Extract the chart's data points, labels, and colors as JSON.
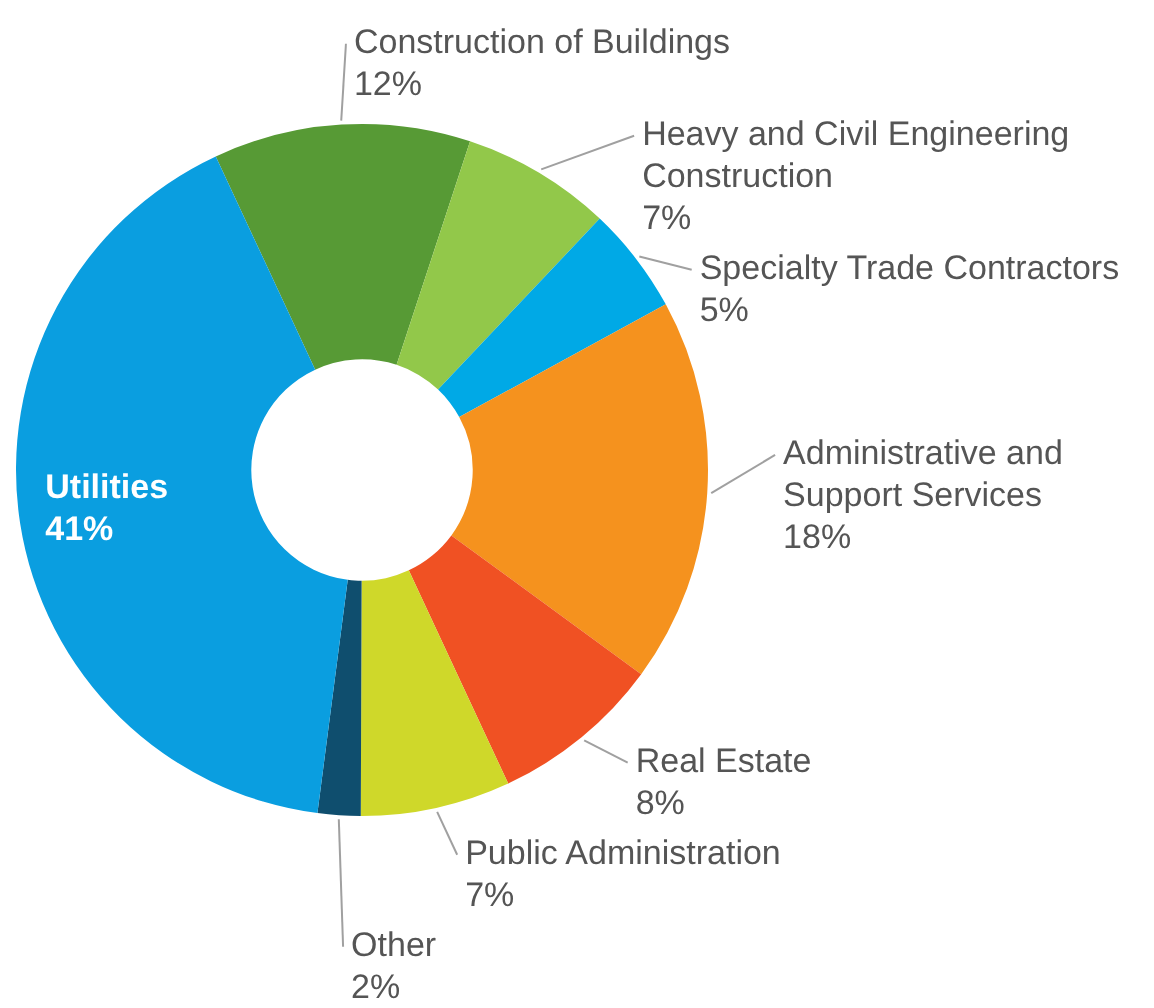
{
  "chart_data": {
    "type": "donut",
    "categories": [
      "Construction of Buildings",
      "Heavy and Civil Engineering Construction",
      "Specialty Trade Contractors",
      "Administrative and Support Services",
      "Real Estate",
      "Public Administration",
      "Other",
      "Utilities"
    ],
    "values": [
      12,
      7,
      5,
      18,
      8,
      7,
      2,
      41
    ],
    "value_labels": [
      "12%",
      "7%",
      "5%",
      "18%",
      "8%",
      "7%",
      "2%",
      "41%"
    ],
    "colors": [
      "#579a35",
      "#92c84a",
      "#00a9e6",
      "#f5921e",
      "#f05123",
      "#cfd82a",
      "#0f4e6e",
      "#0a9ee0"
    ],
    "legend": false
  }
}
